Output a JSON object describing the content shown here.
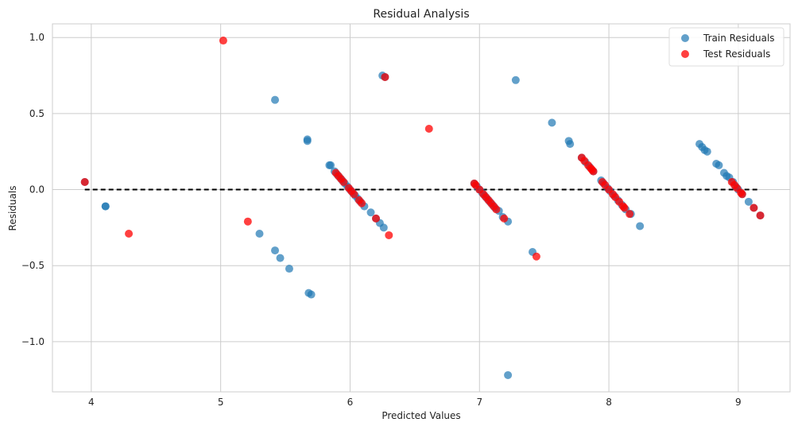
{
  "chart_data": {
    "type": "scatter",
    "title": "Residual Analysis",
    "xlabel": "Predicted Values",
    "ylabel": "Residuals",
    "xlim": [
      3.7,
      9.4
    ],
    "ylim": [
      -1.33,
      1.09
    ],
    "x_ticks": [
      4,
      5,
      6,
      7,
      8,
      9
    ],
    "y_ticks": [
      -1.0,
      -0.5,
      0.0,
      0.5,
      1.0
    ],
    "x_tick_labels": [
      "4",
      "5",
      "6",
      "7",
      "8",
      "9"
    ],
    "y_tick_labels": [
      "−1.0",
      "−0.5",
      "0.0",
      "0.5",
      "1.0"
    ],
    "grid": true,
    "legend_position": "top-right",
    "reference_line": {
      "y": 0,
      "x_from": 3.95,
      "x_to": 9.17,
      "style": "dashed",
      "color": "#000000"
    },
    "series": [
      {
        "name": "Train Residuals",
        "color": "#1f77b4",
        "opacity": 0.7,
        "points": [
          [
            3.95,
            0.05
          ],
          [
            4.11,
            -0.11
          ],
          [
            4.11,
            -0.11
          ],
          [
            5.42,
            0.59
          ],
          [
            5.3,
            -0.29
          ],
          [
            5.42,
            -0.4
          ],
          [
            5.46,
            -0.45
          ],
          [
            5.53,
            -0.52
          ],
          [
            5.67,
            0.33
          ],
          [
            5.67,
            0.32
          ],
          [
            5.68,
            -0.68
          ],
          [
            5.7,
            -0.69
          ],
          [
            5.84,
            0.16
          ],
          [
            5.85,
            0.16
          ],
          [
            5.88,
            0.12
          ],
          [
            5.9,
            0.1
          ],
          [
            5.92,
            0.08
          ],
          [
            5.94,
            0.06
          ],
          [
            5.96,
            0.04
          ],
          [
            5.98,
            0.02
          ],
          [
            6.0,
            0.0
          ],
          [
            6.02,
            -0.02
          ],
          [
            6.04,
            -0.04
          ],
          [
            6.06,
            -0.06
          ],
          [
            6.08,
            -0.08
          ],
          [
            6.11,
            -0.11
          ],
          [
            6.16,
            -0.15
          ],
          [
            6.2,
            -0.19
          ],
          [
            6.23,
            -0.22
          ],
          [
            6.26,
            -0.25
          ],
          [
            6.25,
            0.75
          ],
          [
            6.27,
            0.74
          ],
          [
            6.96,
            0.04
          ],
          [
            6.98,
            0.02
          ],
          [
            7.0,
            0.0
          ],
          [
            7.02,
            -0.02
          ],
          [
            7.04,
            -0.04
          ],
          [
            7.06,
            -0.06
          ],
          [
            7.08,
            -0.08
          ],
          [
            7.1,
            -0.1
          ],
          [
            7.12,
            -0.12
          ],
          [
            7.15,
            -0.14
          ],
          [
            7.18,
            -0.18
          ],
          [
            7.22,
            -0.21
          ],
          [
            7.28,
            0.72
          ],
          [
            7.22,
            -1.22
          ],
          [
            7.41,
            -0.41
          ],
          [
            7.56,
            0.44
          ],
          [
            7.69,
            0.32
          ],
          [
            7.7,
            0.3
          ],
          [
            7.79,
            0.21
          ],
          [
            7.82,
            0.18
          ],
          [
            7.85,
            0.15
          ],
          [
            7.88,
            0.12
          ],
          [
            7.94,
            0.06
          ],
          [
            7.96,
            0.04
          ],
          [
            7.99,
            0.01
          ],
          [
            8.01,
            -0.01
          ],
          [
            8.04,
            -0.04
          ],
          [
            8.07,
            -0.07
          ],
          [
            8.1,
            -0.1
          ],
          [
            8.13,
            -0.13
          ],
          [
            8.17,
            -0.16
          ],
          [
            8.24,
            -0.24
          ],
          [
            8.7,
            0.3
          ],
          [
            8.72,
            0.28
          ],
          [
            8.74,
            0.26
          ],
          [
            8.76,
            0.25
          ],
          [
            8.83,
            0.17
          ],
          [
            8.85,
            0.16
          ],
          [
            8.89,
            0.11
          ],
          [
            8.91,
            0.09
          ],
          [
            8.93,
            0.08
          ],
          [
            8.96,
            0.05
          ],
          [
            8.98,
            0.02
          ],
          [
            9.0,
            0.0
          ],
          [
            9.03,
            -0.03
          ],
          [
            9.08,
            -0.08
          ],
          [
            9.12,
            -0.12
          ],
          [
            9.17,
            -0.17
          ]
        ]
      },
      {
        "name": "Test Residuals",
        "color": "#ff0000",
        "opacity": 0.75,
        "points": [
          [
            3.95,
            0.05
          ],
          [
            4.29,
            -0.29
          ],
          [
            5.02,
            0.98
          ],
          [
            5.21,
            -0.21
          ],
          [
            5.89,
            0.11
          ],
          [
            5.91,
            0.09
          ],
          [
            5.93,
            0.07
          ],
          [
            5.95,
            0.05
          ],
          [
            5.99,
            0.01
          ],
          [
            6.01,
            -0.01
          ],
          [
            6.03,
            -0.03
          ],
          [
            6.07,
            -0.07
          ],
          [
            6.09,
            -0.09
          ],
          [
            6.2,
            -0.19
          ],
          [
            6.27,
            0.74
          ],
          [
            6.3,
            -0.3
          ],
          [
            6.61,
            0.4
          ],
          [
            6.96,
            0.04
          ],
          [
            6.97,
            0.03
          ],
          [
            7.0,
            0.0
          ],
          [
            7.03,
            -0.03
          ],
          [
            7.05,
            -0.05
          ],
          [
            7.07,
            -0.07
          ],
          [
            7.09,
            -0.09
          ],
          [
            7.11,
            -0.11
          ],
          [
            7.13,
            -0.13
          ],
          [
            7.19,
            -0.19
          ],
          [
            7.44,
            -0.44
          ],
          [
            7.79,
            0.21
          ],
          [
            7.81,
            0.19
          ],
          [
            7.84,
            0.16
          ],
          [
            7.86,
            0.14
          ],
          [
            7.87,
            0.13
          ],
          [
            7.88,
            0.12
          ],
          [
            7.95,
            0.05
          ],
          [
            7.97,
            0.03
          ],
          [
            8.0,
            0.0
          ],
          [
            8.03,
            -0.03
          ],
          [
            8.05,
            -0.05
          ],
          [
            8.08,
            -0.08
          ],
          [
            8.11,
            -0.11
          ],
          [
            8.12,
            -0.12
          ],
          [
            8.16,
            -0.16
          ],
          [
            8.95,
            0.05
          ],
          [
            8.97,
            0.03
          ],
          [
            8.99,
            0.01
          ],
          [
            9.02,
            -0.02
          ],
          [
            9.03,
            -0.03
          ],
          [
            9.12,
            -0.12
          ],
          [
            9.17,
            -0.17
          ]
        ]
      }
    ]
  }
}
